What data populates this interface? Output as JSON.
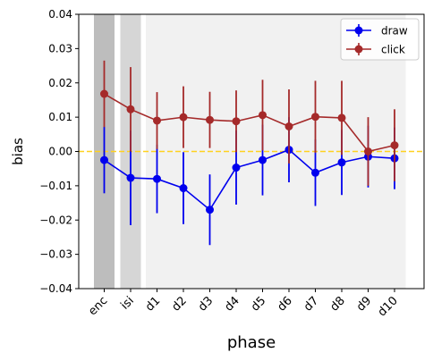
{
  "chart_data": {
    "type": "line",
    "xlabel": "phase",
    "ylabel": "bias",
    "categories": [
      "enc",
      "isi",
      "d1",
      "d2",
      "d3",
      "d4",
      "d5",
      "d6",
      "d7",
      "d8",
      "d9",
      "d10"
    ],
    "ylim": [
      -0.04,
      0.04
    ],
    "yticks": [
      -0.04,
      -0.03,
      -0.02,
      -0.01,
      0.0,
      0.01,
      0.02,
      0.03,
      0.04
    ],
    "ytick_labels": [
      "−0.04",
      "−0.03",
      "−0.02",
      "−0.01",
      "0.00",
      "0.01",
      "0.02",
      "0.03",
      "0.04"
    ],
    "reference_line": {
      "y": 0.0,
      "style": "dashed",
      "color": "#FFD21F"
    },
    "shaded_regions": [
      {
        "categories": [
          "enc"
        ],
        "color": "#bdbdbd"
      },
      {
        "categories": [
          "isi"
        ],
        "color": "#d6d6d6"
      },
      {
        "categories": [
          "d1",
          "d10"
        ],
        "color": "#f1f1f1"
      }
    ],
    "legend_position": "top-right",
    "series": [
      {
        "name": "draw",
        "color": "#0000ee",
        "values": [
          -0.0025,
          -0.0077,
          -0.008,
          -0.0107,
          -0.017,
          -0.0047,
          -0.0025,
          0.0005,
          -0.0062,
          -0.0032,
          -0.0015,
          -0.002
        ],
        "errors": [
          0.0097,
          0.0138,
          0.01,
          0.0105,
          0.0103,
          0.0108,
          0.0103,
          0.0095,
          0.0097,
          0.0095,
          0.009,
          0.009
        ]
      },
      {
        "name": "click",
        "color": "#a52a2a",
        "values": [
          0.0168,
          0.0123,
          0.009,
          0.01,
          0.0092,
          0.0088,
          0.0106,
          0.0073,
          0.0101,
          0.0098,
          0.0,
          0.0018
        ],
        "errors": [
          0.0097,
          0.0123,
          0.0083,
          0.009,
          0.0082,
          0.009,
          0.0103,
          0.0108,
          0.0105,
          0.0108,
          0.01,
          0.0105
        ]
      }
    ]
  }
}
